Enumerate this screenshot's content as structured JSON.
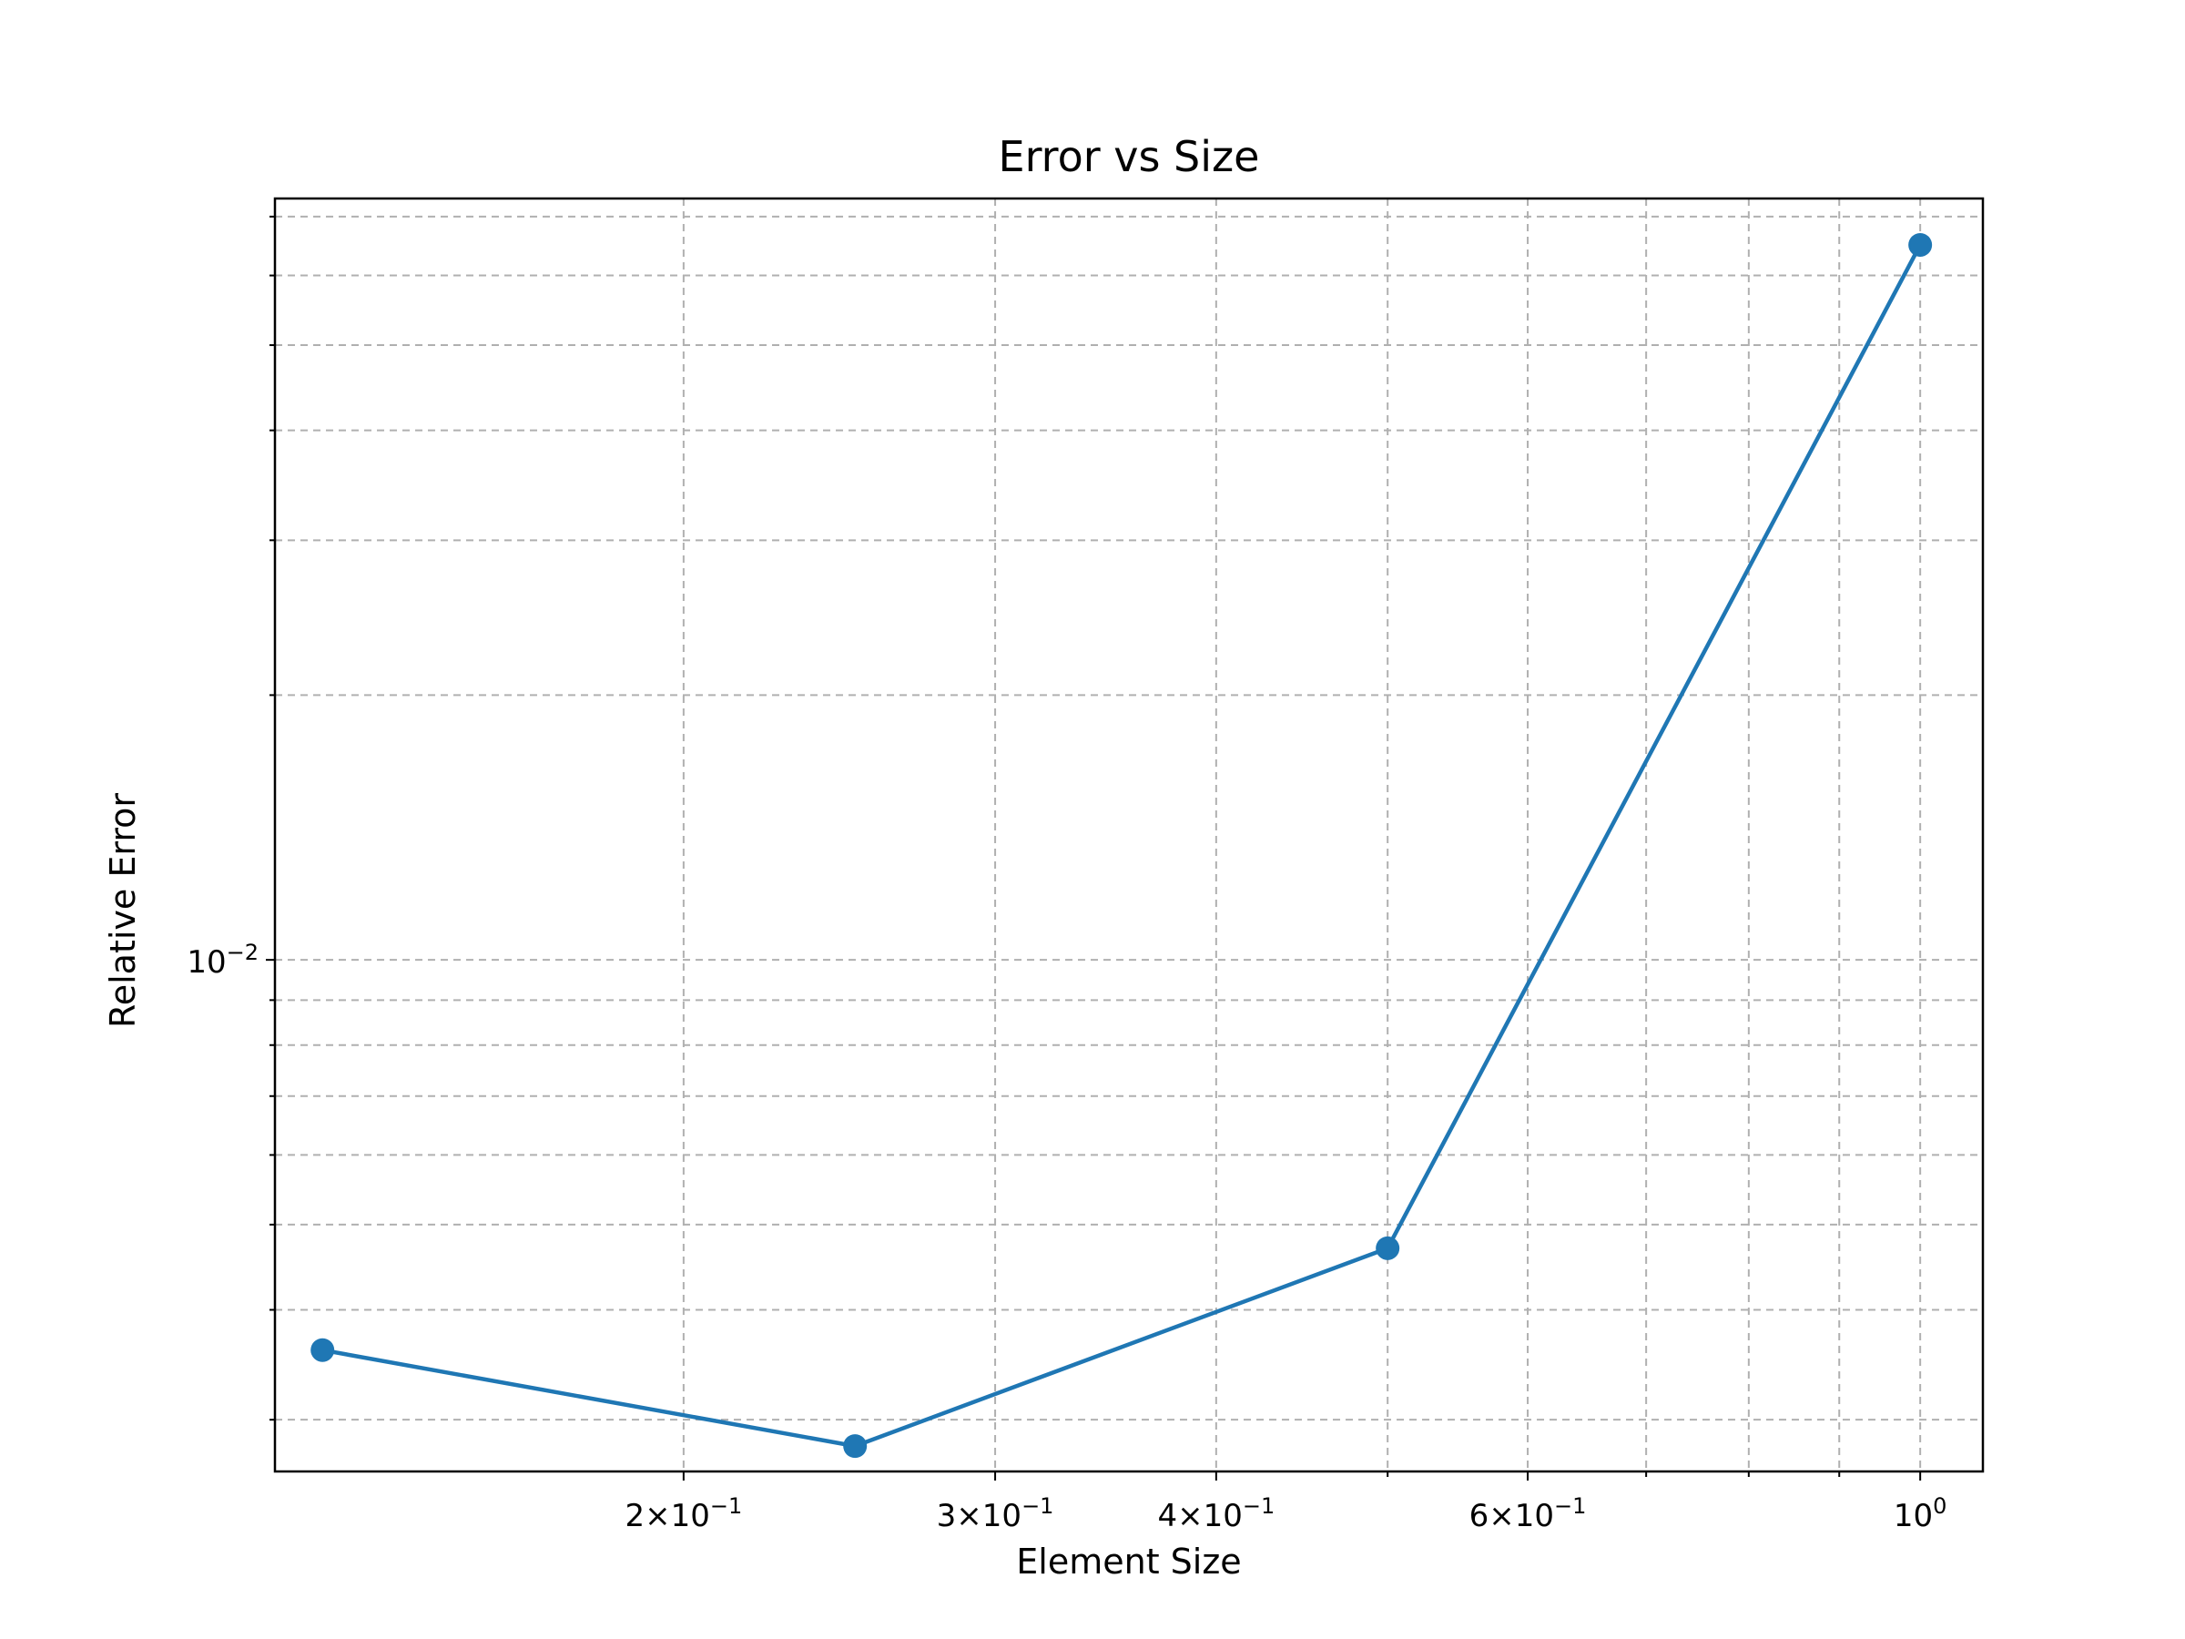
{
  "chart_data": {
    "type": "line",
    "title": "Error vs Size",
    "xlabel": "Element Size",
    "ylabel": "Relative Error",
    "xscale": "log",
    "yscale": "log",
    "xlim": [
      0.1175,
      1.085
    ],
    "ylim": [
      0.00262,
      0.0734
    ],
    "grid": "both (major and minor), dashed",
    "legend": "none",
    "x_ticks": [
      {
        "value": 0.2,
        "mant": "2",
        "base": "10",
        "exp": "−1"
      },
      {
        "value": 0.3,
        "mant": "3",
        "base": "10",
        "exp": "−1"
      },
      {
        "value": 0.4,
        "mant": "4",
        "base": "10",
        "exp": "−1"
      },
      {
        "value": 0.6,
        "mant": "6",
        "base": "10",
        "exp": "−1"
      },
      {
        "value": 1.0,
        "mant": "",
        "base": "10",
        "exp": "0"
      }
    ],
    "x_minor_gridlines": [
      0.5,
      0.7,
      0.8,
      0.9
    ],
    "y_ticks": [
      {
        "value": 0.01,
        "mant": "",
        "base": "10",
        "exp": "−2"
      }
    ],
    "y_minor_gridlines": [
      0.003,
      0.004,
      0.005,
      0.006,
      0.007,
      0.008,
      0.009,
      0.02,
      0.03,
      0.04,
      0.05,
      0.06,
      0.07
    ],
    "series": [
      {
        "color": "#1f77b4",
        "marker": "circle",
        "x": [
          0.125,
          0.25,
          0.5,
          1.0
        ],
        "y": [
          0.0036,
          0.0028,
          0.0047,
          0.065
        ]
      }
    ]
  }
}
